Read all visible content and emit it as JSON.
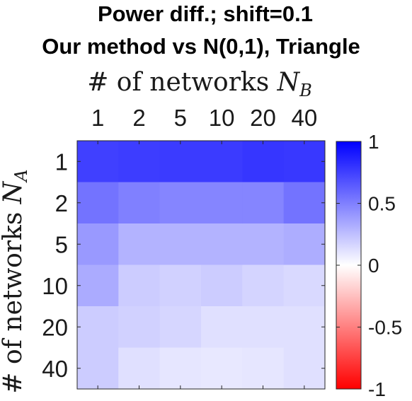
{
  "chart_data": {
    "type": "heatmap",
    "title": [
      "Power diff.; shift=0.1",
      "Our method vs N(0,1), Triangle"
    ],
    "xlabel_parts": [
      "# of networks ",
      "N",
      "B"
    ],
    "ylabel_parts": [
      "# of networks ",
      "N",
      "A"
    ],
    "x_categories": [
      "1",
      "2",
      "5",
      "10",
      "20",
      "40"
    ],
    "y_categories": [
      "1",
      "2",
      "5",
      "10",
      "20",
      "40"
    ],
    "values": [
      [
        0.75,
        0.76,
        0.77,
        0.77,
        0.79,
        0.78
      ],
      [
        0.55,
        0.5,
        0.48,
        0.48,
        0.48,
        0.55
      ],
      [
        0.4,
        0.3,
        0.3,
        0.3,
        0.3,
        0.32
      ],
      [
        0.33,
        0.2,
        0.18,
        0.2,
        0.17,
        0.15
      ],
      [
        0.2,
        0.18,
        0.16,
        0.12,
        0.12,
        0.12
      ],
      [
        0.2,
        0.12,
        0.1,
        0.09,
        0.1,
        0.12
      ]
    ],
    "colorbar": {
      "range": [
        -1,
        1
      ],
      "ticks": [
        1,
        0.5,
        0,
        -0.5,
        -1
      ],
      "tick_labels": [
        "1",
        "0.5",
        "0",
        "-0.5",
        "-1"
      ],
      "colormap": "red-white-blue",
      "positive_color": "#0000ff",
      "neutral_color": "#ffffff",
      "negative_color": "#ff0000"
    }
  }
}
